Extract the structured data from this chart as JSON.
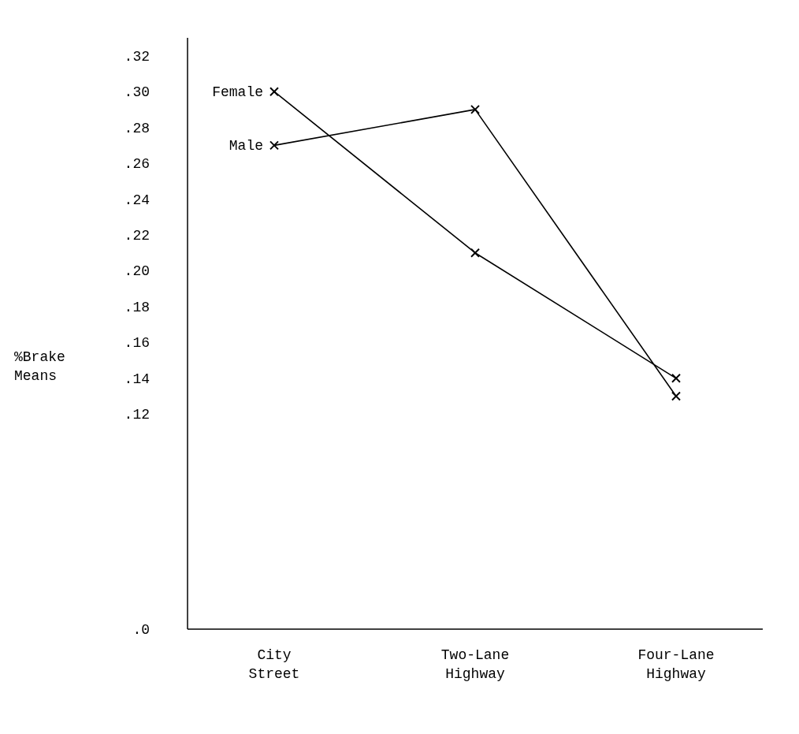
{
  "chart_data": {
    "type": "line",
    "ylabel": "%Brake Means",
    "categories": [
      "City Street",
      "Two-Lane Highway",
      "Four-Lane Highway"
    ],
    "series": [
      {
        "name": "Female",
        "color": "#000000",
        "values": [
          0.3,
          0.21,
          0.14
        ]
      },
      {
        "name": "Male",
        "color": "#000000",
        "values": [
          0.27,
          0.29,
          0.13
        ]
      }
    ],
    "ylim": [
      0,
      0.33
    ],
    "yticks": [
      {
        "value": 0,
        "label": ".0"
      },
      {
        "value": 0.12,
        "label": ".12"
      },
      {
        "value": 0.14,
        "label": ".14"
      },
      {
        "value": 0.16,
        "label": ".16"
      },
      {
        "value": 0.18,
        "label": ".18"
      },
      {
        "value": 0.2,
        "label": ".20"
      },
      {
        "value": 0.22,
        "label": ".22"
      },
      {
        "value": 0.24,
        "label": ".24"
      },
      {
        "value": 0.26,
        "label": ".26"
      },
      {
        "value": 0.28,
        "label": ".28"
      },
      {
        "value": 0.3,
        "label": ".30"
      },
      {
        "value": 0.32,
        "label": ".32"
      }
    ],
    "grid": false,
    "legend": false,
    "marker": "cross",
    "line_style": "solid"
  }
}
